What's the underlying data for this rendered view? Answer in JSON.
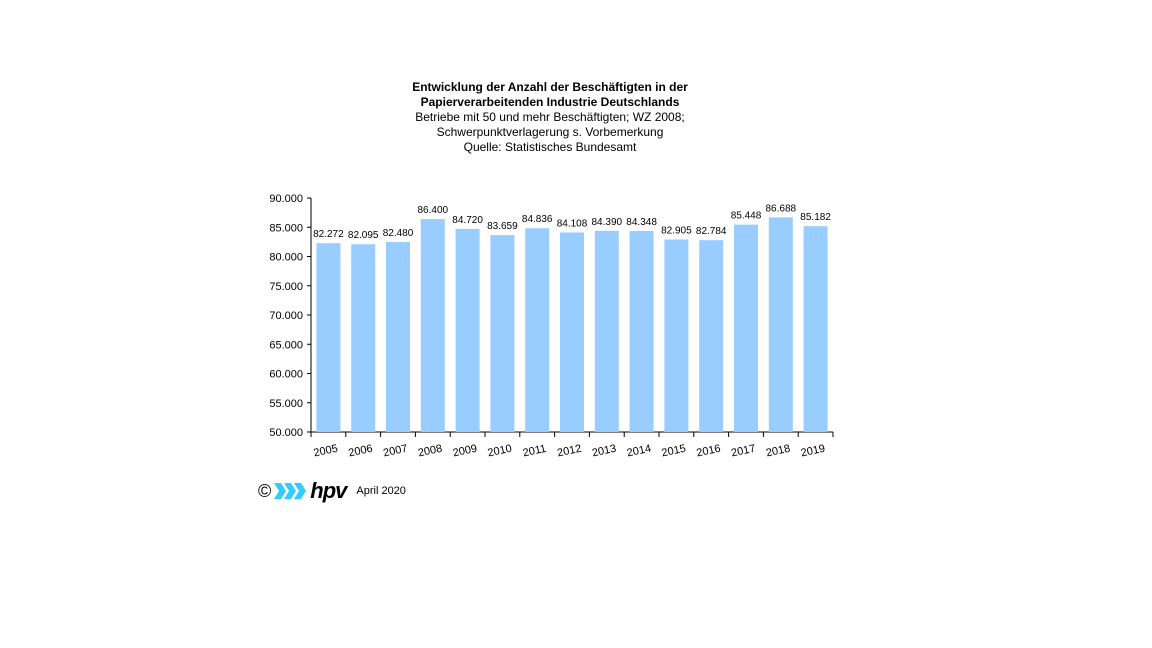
{
  "chart_data": {
    "type": "bar",
    "title": "Entwicklung der Anzahl der Beschäftigten  in der",
    "title_line2": "Papierverarbeitenden Industrie Deutschlands",
    "subtitle_lines": [
      "Betriebe  mit 50 und  mehr  Beschäftigten;  WZ 2008;",
      "Schwerpunktverlagerung   s. Vorbemerkung",
      "Quelle:  Statistisches Bundesamt"
    ],
    "categories": [
      "2005",
      "2006",
      "2007",
      "2008",
      "2009",
      "2010",
      "2011",
      "2012",
      "2013",
      "2014",
      "2015",
      "2016",
      "2017",
      "2018",
      "2019"
    ],
    "values": [
      82272,
      82095,
      82480,
      86400,
      84720,
      83659,
      84836,
      84108,
      84390,
      84348,
      82905,
      82784,
      85448,
      86688,
      85182
    ],
    "value_labels": [
      "82.272",
      "82.095",
      "82.480",
      "86.400",
      "84.720",
      "83.659",
      "84.836",
      "84.108",
      "84.390",
      "84.348",
      "82.905",
      "82.784",
      "85.448",
      "86.688",
      "85.182"
    ],
    "yticks": [
      50000,
      55000,
      60000,
      65000,
      70000,
      75000,
      80000,
      85000,
      90000
    ],
    "ytick_labels": [
      "50.000",
      "55.000",
      "60.000",
      "65.000",
      "70.000",
      "75.000",
      "80.000",
      "85.000",
      "90.000"
    ],
    "ylim": [
      50000,
      90000
    ],
    "grid": false,
    "xlabel": "",
    "ylabel": "",
    "bar_color": "#99ccff"
  },
  "footer": {
    "copyright_symbol": "©",
    "logo_text": "hpv",
    "date": "April 2020",
    "logo_color": "#33ccff"
  }
}
